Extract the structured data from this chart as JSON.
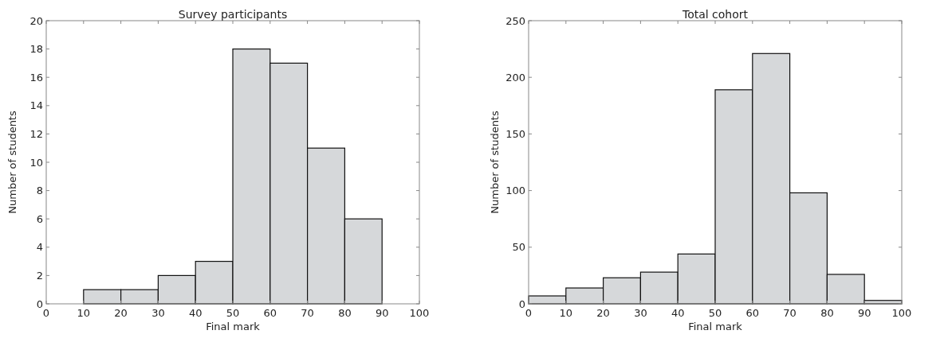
{
  "chart_data": [
    {
      "type": "histogram",
      "title": "Survey participants",
      "xlabel": "Final mark",
      "ylabel": "Number of students",
      "bins": [
        0,
        10,
        20,
        30,
        40,
        50,
        60,
        70,
        80,
        90,
        100
      ],
      "values": [
        0,
        1,
        1,
        2,
        3,
        18,
        17,
        11,
        6,
        0
      ],
      "color": "#d6d8da",
      "xlim": [
        0,
        100
      ],
      "ylim": [
        0,
        20
      ],
      "xticks": [
        0,
        10,
        20,
        30,
        40,
        50,
        60,
        70,
        80,
        90,
        100
      ],
      "yticks": [
        0,
        2,
        4,
        6,
        8,
        10,
        12,
        14,
        16,
        18,
        20
      ],
      "grid": false
    },
    {
      "type": "histogram",
      "title": "Total cohort",
      "xlabel": "Final mark",
      "ylabel": "Number of students",
      "bins": [
        0,
        10,
        20,
        30,
        40,
        50,
        60,
        70,
        80,
        90,
        100
      ],
      "values": [
        7,
        14,
        23,
        28,
        44,
        189,
        221,
        98,
        26,
        3
      ],
      "color": "#d6d8da",
      "xlim": [
        0,
        100
      ],
      "ylim": [
        0,
        250
      ],
      "xticks": [
        0,
        10,
        20,
        30,
        40,
        50,
        60,
        70,
        80,
        90,
        100
      ],
      "yticks": [
        0,
        50,
        100,
        150,
        200,
        250
      ],
      "grid": false
    }
  ]
}
